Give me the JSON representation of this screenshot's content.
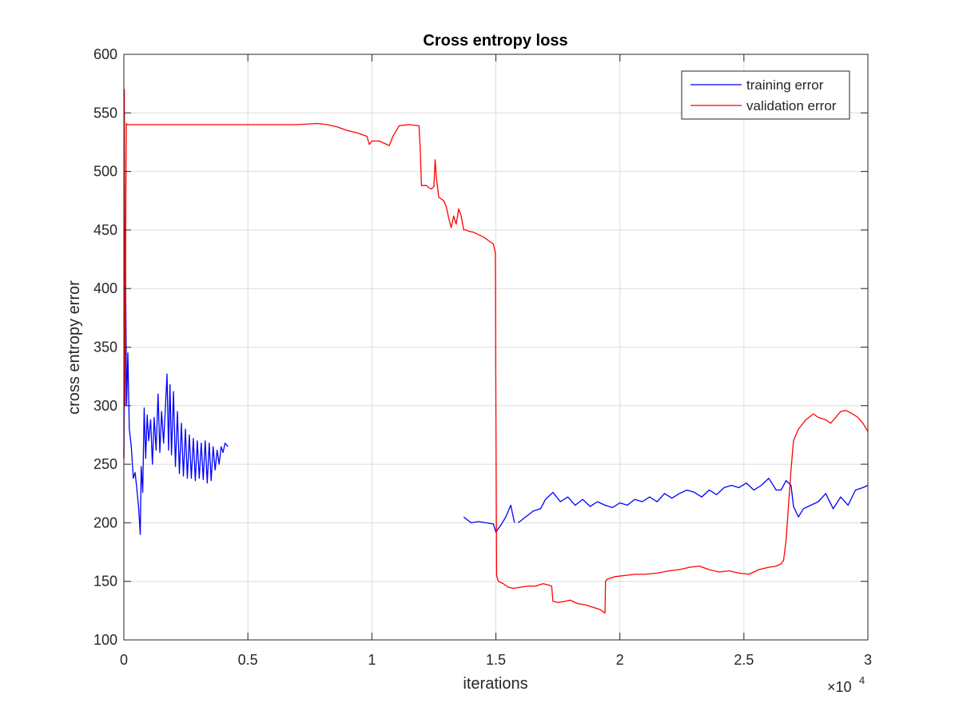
{
  "colors": {
    "training": "#0000ff",
    "validation": "#ff0000",
    "grid": "#dcdcdc",
    "axis": "#262626",
    "background": "#ffffff"
  },
  "chart_data": {
    "type": "line",
    "title": "Cross entropy loss",
    "xlabel": "iterations",
    "ylabel": "cross entropy error",
    "x_exponent_label": "×10",
    "x_exponent_power": "4",
    "xlim": [
      0,
      30000
    ],
    "ylim": [
      100,
      600
    ],
    "grid": true,
    "legend_position": "top-right",
    "x_ticks": [
      0,
      5000,
      10000,
      15000,
      20000,
      25000,
      30000
    ],
    "x_tick_labels": [
      "0",
      "0.5",
      "1",
      "1.5",
      "2",
      "2.5",
      "3"
    ],
    "y_ticks": [
      100,
      150,
      200,
      250,
      300,
      350,
      400,
      450,
      500,
      550,
      600
    ],
    "y_tick_labels": [
      "100",
      "150",
      "200",
      "250",
      "300",
      "350",
      "400",
      "450",
      "500",
      "550",
      "600"
    ],
    "series": [
      {
        "name": "training error",
        "segments": [
          {
            "x": [
              0,
              60,
              110,
              160,
              220,
              300,
              380,
              450,
              520,
              600,
              660,
              700,
              760,
              820,
              880,
              940,
              1000,
              1080,
              1150,
              1220,
              1300,
              1380,
              1450,
              1520,
              1600,
              1680,
              1740,
              1800,
              1860,
              1920,
              2000,
              2080,
              2160,
              2240,
              2320,
              2400,
              2480,
              2560,
              2640,
              2720,
              2800,
              2880,
              2960,
              3040,
              3120,
              3200,
              3280,
              3360,
              3440,
              3520,
              3600,
              3680,
              3760,
              3840,
              3920,
              4000,
              4080,
              4200
            ],
            "y": [
              255,
              435,
              300,
              345,
              280,
              265,
              238,
              243,
              230,
              212,
              190,
              248,
              226,
              298,
              255,
              292,
              270,
              288,
              250,
              290,
              262,
              310,
              260,
              295,
              268,
              300,
              327,
              262,
              318,
              258,
              312,
              248,
              295,
              242,
              285,
              240,
              280,
              238,
              275,
              238,
              272,
              236,
              270,
              238,
              268,
              237,
              270,
              234,
              268,
              236,
              265,
              245,
              262,
              250,
              265,
              260,
              268,
              265
            ]
          },
          {
            "x": [
              13700,
              14000,
              14300,
              14600,
              14900,
              15000,
              15200,
              15400,
              15600,
              15750
            ],
            "y": [
              205,
              200,
              201,
              200,
              199,
              192,
              198,
              205,
              215,
              200
            ]
          },
          {
            "x": [
              15900,
              16200,
              16500,
              16800,
              17000,
              17300,
              17600,
              17900,
              18200,
              18500,
              18800,
              19100,
              19400,
              19700,
              20000,
              20300,
              20600,
              20900,
              21200,
              21500,
              21800,
              22100,
              22400,
              22700,
              23000,
              23300,
              23600,
              23900,
              24200,
              24500,
              24800,
              25100,
              25400,
              25700,
              26000,
              26300,
              26500,
              26700,
              26900,
              27000,
              27200,
              27400,
              27700,
              28000,
              28300,
              28600,
              28900,
              29200,
              29500,
              29800,
              30000
            ],
            "y": [
              200,
              205,
              210,
              212,
              220,
              226,
              218,
              222,
              215,
              220,
              214,
              218,
              215,
              213,
              217,
              215,
              220,
              218,
              222,
              218,
              225,
              221,
              225,
              228,
              226,
              222,
              228,
              224,
              230,
              232,
              230,
              234,
              228,
              232,
              238,
              228,
              228,
              236,
              232,
              214,
              205,
              212,
              215,
              218,
              225,
              212,
              222,
              215,
              228,
              230,
              232
            ]
          }
        ]
      },
      {
        "name": "validation error",
        "segments": [
          {
            "x": [
              0,
              20,
              50,
              80,
              100,
              130,
              200,
              400,
              1000,
              2000,
              3000,
              4000,
              5000,
              6000,
              7000,
              7800,
              8200,
              8600,
              9000,
              9400,
              9800,
              9900,
              10000,
              10300,
              10500,
              10700,
              10850,
              11100,
              11500,
              11900,
              11950,
              12000,
              12200,
              12300,
              12400,
              12500,
              12550,
              12600,
              12700,
              12900,
              13000,
              13100,
              13200,
              13300,
              13400,
              13500,
              13600,
              13700,
              13800,
              13900,
              14100,
              14300,
              14500,
              14700,
              14900,
              14980,
              15000,
              15030,
              15100,
              15300,
              15500,
              15700,
              16000,
              16300,
              16600,
              16900,
              17100,
              17250,
              17300,
              17500,
              17800,
              18000,
              18300,
              18600,
              18900,
              19200,
              19400,
              19420,
              19500,
              19800,
              20200,
              20600,
              21000,
              21500,
              22000,
              22400,
              22800,
              23200,
              23600,
              24000,
              24400,
              24800,
              25200,
              25600,
              26000,
              26300,
              26500,
              26600,
              26700,
              26800,
              26900,
              27000,
              27200,
              27500,
              27800,
              28000,
              28300,
              28500,
              28700,
              28900,
              29100,
              29300,
              29600,
              29800,
              30000
            ],
            "y": [
              255,
              570,
              300,
              480,
              541,
              540,
              540,
              540,
              540,
              540,
              540,
              540,
              540,
              540,
              540,
              541,
              540,
              538,
              535,
              533,
              530,
              523,
              526,
              526,
              524,
              522,
              530,
              539,
              540,
              539,
              520,
              488,
              488,
              486,
              485,
              487,
              510,
              495,
              478,
              475,
              470,
              460,
              452,
              462,
              455,
              468,
              462,
              450,
              450,
              449,
              448,
              446,
              444,
              441,
              438,
              430,
              300,
              155,
              150,
              148,
              145,
              144,
              145,
              146,
              146,
              148,
              147,
              146,
              133,
              132,
              133,
              134,
              131,
              130,
              128,
              126,
              123,
              150,
              152,
              154,
              155,
              156,
              156,
              157,
              159,
              160,
              162,
              163,
              160,
              158,
              159,
              157,
              156,
              160,
              162,
              163,
              165,
              168,
              185,
              215,
              245,
              270,
              280,
              288,
              293,
              290,
              288,
              285,
              290,
              295,
              296,
              294,
              290,
              285,
              278
            ]
          }
        ]
      }
    ]
  }
}
